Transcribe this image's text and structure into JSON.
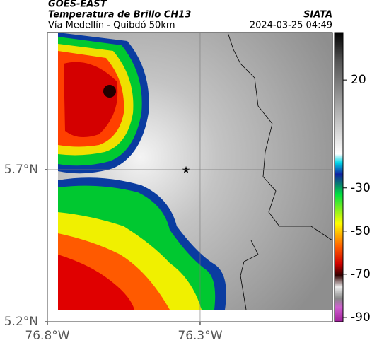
{
  "chart_data": {
    "type": "map",
    "title": "GOES-EAST",
    "subtitle": "Temperatura de Brillo CH13",
    "location": "Vía Medellín - Quibdó 50km",
    "source": "SIATA",
    "timestamp": "2024-03-25 04:49",
    "xlim": [
      -76.8,
      -75.867
    ],
    "ylim": [
      5.2,
      6.151
    ],
    "xticks": [
      {
        "value": -76.8,
        "label": "76.8°W"
      },
      {
        "value": -76.3,
        "label": "76.3°W"
      }
    ],
    "yticks": [
      {
        "value": 5.2,
        "label": "5.2°N"
      },
      {
        "value": 5.7,
        "label": "5.7°N"
      }
    ],
    "grid": true,
    "colorbar": {
      "lim": [
        -92,
        42
      ],
      "ticks": [
        20,
        -30,
        -50,
        -70,
        -90
      ]
    }
  }
}
